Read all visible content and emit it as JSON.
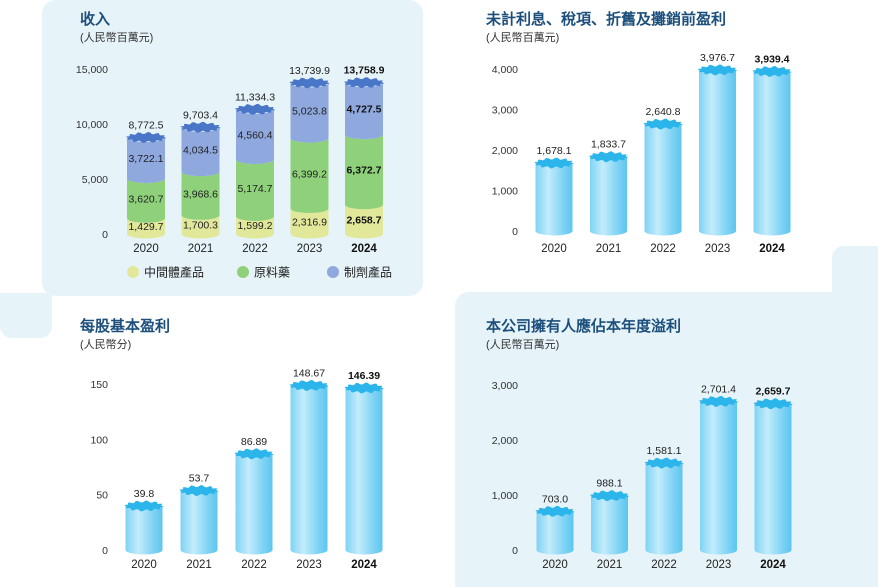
{
  "colors": {
    "panel_bg": "#e6f3f8",
    "title": "#1d4f7c",
    "intermediate": "#e2e89a",
    "api": "#8ed17a",
    "formulation": "#8fa8de",
    "bar_light": "#c3ecfb",
    "bar_mid": "#7fd3f4",
    "bar_cap": "#2cb5ea",
    "stack_cap": "#4a76c8"
  },
  "chart_data": [
    {
      "id": "revenue",
      "type": "bar",
      "stacked": true,
      "title": "收入",
      "subtitle": "(人民幣百萬元)",
      "categories": [
        "2020",
        "2021",
        "2022",
        "2023",
        "2024"
      ],
      "highlight_category": "2024",
      "yticks": [
        "0",
        "5,000",
        "10,000",
        "15,000"
      ],
      "ytick_values": [
        0,
        5000,
        10000,
        15000
      ],
      "ylim": [
        0,
        15000
      ],
      "series": [
        {
          "name": "中間體產品",
          "values": [
            1429.7,
            1700.3,
            1599.2,
            2316.9,
            2658.7
          ],
          "labels": [
            "1,429.7",
            "1,700.3",
            "1,599.2",
            "2,316.9",
            "2,658.7"
          ]
        },
        {
          "name": "原料藥",
          "values": [
            3620.7,
            3968.6,
            5174.7,
            6399.2,
            6372.7
          ],
          "labels": [
            "3,620.7",
            "3,968.6",
            "5,174.7",
            "6,399.2",
            "6,372.7"
          ]
        },
        {
          "name": "制劑產品",
          "values": [
            3722.1,
            4034.5,
            4560.4,
            5023.8,
            4727.5
          ],
          "labels": [
            "3,722.1",
            "4,034.5",
            "4,560.4",
            "5,023.8",
            "4,727.5"
          ]
        }
      ],
      "totals": [
        8772.5,
        9703.4,
        11334.3,
        13739.9,
        13758.9
      ],
      "total_labels": [
        "8,772.5",
        "9,703.4",
        "11,334.3",
        "13,739.9",
        "13,758.9"
      ],
      "legend": [
        "中間體產品",
        "原料藥",
        "制劑產品"
      ]
    },
    {
      "id": "ebitda",
      "type": "bar",
      "title": "未計利息、稅項、折舊及攤銷前盈利",
      "subtitle": "(人民幣百萬元)",
      "categories": [
        "2020",
        "2021",
        "2022",
        "2023",
        "2024"
      ],
      "highlight_category": "2024",
      "values": [
        1678.1,
        1833.7,
        2640.8,
        3976.7,
        3939.4
      ],
      "value_labels": [
        "1,678.1",
        "1,833.7",
        "2,640.8",
        "3,976.7",
        "3,939.4"
      ],
      "yticks": [
        "0",
        "1,000",
        "2,000",
        "3,000",
        "4,000"
      ],
      "ytick_values": [
        0,
        1000,
        2000,
        3000,
        4000
      ],
      "ylim": [
        0,
        4000
      ]
    },
    {
      "id": "eps",
      "type": "bar",
      "title": "每股基本盈利",
      "subtitle": "(人民幣分)",
      "categories": [
        "2020",
        "2021",
        "2022",
        "2023",
        "2024"
      ],
      "highlight_category": "2024",
      "values": [
        39.8,
        53.7,
        86.89,
        148.67,
        146.39
      ],
      "value_labels": [
        "39.8",
        "53.7",
        "86.89",
        "148.67",
        "146.39"
      ],
      "yticks": [
        "0",
        "50",
        "100",
        "150"
      ],
      "ytick_values": [
        0,
        50,
        100,
        150
      ],
      "ylim": [
        0,
        150
      ]
    },
    {
      "id": "profit",
      "type": "bar",
      "title": "本公司擁有人應佔本年度溢利",
      "subtitle": "(人民幣百萬元)",
      "categories": [
        "2020",
        "2021",
        "2022",
        "2023",
        "2024"
      ],
      "highlight_category": "2024",
      "values": [
        703.0,
        988.1,
        1581.1,
        2701.4,
        2659.7
      ],
      "value_labels": [
        "703.0",
        "988.1",
        "1,581.1",
        "2,701.4",
        "2,659.7"
      ],
      "yticks": [
        "0",
        "1,000",
        "2,000",
        "3,000"
      ],
      "ytick_values": [
        0,
        1000,
        2000,
        3000
      ],
      "ylim": [
        0,
        3000
      ]
    }
  ]
}
